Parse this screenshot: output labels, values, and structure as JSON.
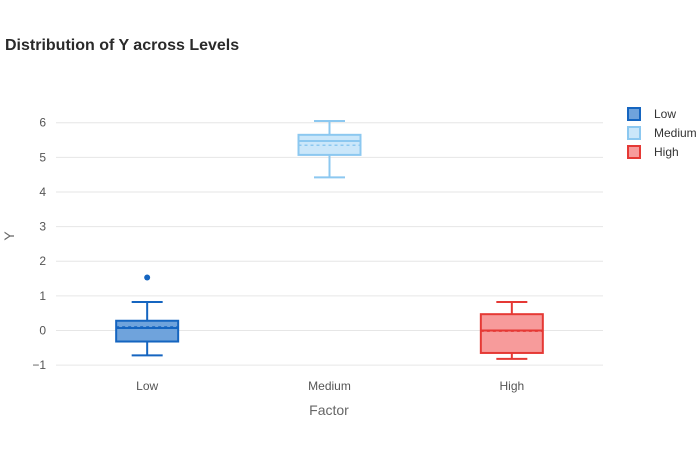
{
  "chart_data": {
    "type": "box",
    "title": "Distribution of Y across Levels",
    "xlabel": "Factor",
    "ylabel": "Y",
    "categories": [
      "Low",
      "Medium",
      "High"
    ],
    "ylim": [
      -1.2,
      6.8
    ],
    "yticks": [
      -1,
      0,
      1,
      2,
      3,
      4,
      5,
      6
    ],
    "grid": true,
    "legend_position": "top-right",
    "series": [
      {
        "name": "Low",
        "min": -0.72,
        "q1": -0.32,
        "median": 0.07,
        "mean": 0.1,
        "q3": 0.28,
        "max": 0.82,
        "outliers": [
          1.53
        ],
        "stroke": "#1565c0",
        "fill": "#6fa3dc"
      },
      {
        "name": "Medium",
        "min": 4.42,
        "q1": 5.07,
        "median": 5.47,
        "mean": 5.35,
        "q3": 5.65,
        "max": 6.05,
        "outliers": [],
        "stroke": "#8cc8f0",
        "fill": "#cbe7fa"
      },
      {
        "name": "High",
        "min": -0.82,
        "q1": -0.65,
        "median": 0.0,
        "mean": -0.02,
        "q3": 0.47,
        "max": 0.82,
        "outliers": [],
        "stroke": "#e53935",
        "fill": "#f79b9b"
      }
    ]
  }
}
